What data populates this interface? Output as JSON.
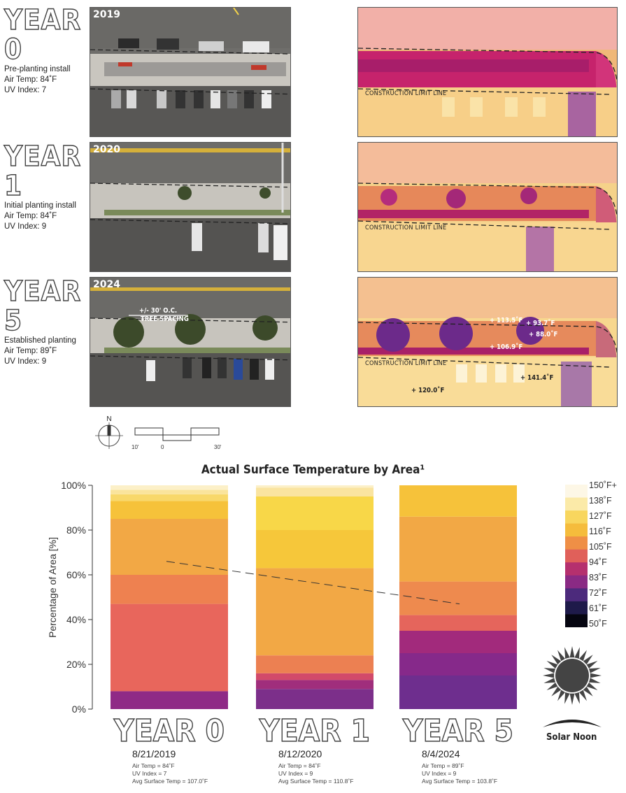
{
  "rows": [
    {
      "year_label": "YEAR 0",
      "photo_year": "2019",
      "caption": "Pre-planting install",
      "air_temp": "Air Temp: 84˚F",
      "uv": "UV Index: 7"
    },
    {
      "year_label": "YEAR 1",
      "photo_year": "2020",
      "caption": "Initial planting install",
      "air_temp": "Air Temp: 84˚F",
      "uv": "UV Index: 9"
    },
    {
      "year_label": "YEAR 5",
      "photo_year": "2024",
      "caption": "Established planting",
      "air_temp": "Air Temp: 89˚F",
      "uv": "UV Index: 9"
    }
  ],
  "thermal": {
    "construction_limit_line": "CONSTRUCTION LIMIT LINE",
    "tree_spacing_1": "+/- 30' O.C.",
    "tree_spacing_2": "TREE SPACING",
    "readings": [
      "+ 113.5˚F",
      "+ 93.7˚F",
      "+ 88.0˚F",
      "+ 106.9˚F",
      "+ 141.4˚F",
      "+ 120.0˚F"
    ]
  },
  "compass": {
    "north": "N"
  },
  "scale_bar": {
    "labels": [
      "10'",
      "0",
      "30'"
    ]
  },
  "chart_data": {
    "type": "bar",
    "stacked": true,
    "title": "Actual Surface Temperature by Area¹",
    "ylabel": "Percentage of Area [%]",
    "ylim": [
      0,
      100
    ],
    "yticks": [
      "0%",
      "20%",
      "40%",
      "60%",
      "80%",
      "100%"
    ],
    "categories": [
      "YEAR 0",
      "YEAR 1",
      "YEAR 5"
    ],
    "dates": [
      "8/21/2019",
      "8/12/2020",
      "8/4/2024"
    ],
    "notes": [
      [
        "Air Temp = 84˚F",
        "UV Index = 7",
        "Avg Surface Temp = 107.0˚F"
      ],
      [
        "Air Temp = 84˚F",
        "UV Index = 9",
        "Avg Surface Temp = 110.8˚F"
      ],
      [
        "Air Temp = 89˚F",
        "UV Index = 9",
        "Avg Surface Temp = 103.8˚F"
      ]
    ],
    "stacks": [
      [
        {
          "from": 0,
          "to": 8,
          "color": "#8f2a86"
        },
        {
          "from": 8,
          "to": 47,
          "color": "#e8665c"
        },
        {
          "from": 47,
          "to": 60,
          "color": "#ee8150"
        },
        {
          "from": 60,
          "to": 85,
          "color": "#f2a845"
        },
        {
          "from": 85,
          "to": 93,
          "color": "#f6c23a"
        },
        {
          "from": 93,
          "to": 96,
          "color": "#f8d86a"
        },
        {
          "from": 96,
          "to": 98,
          "color": "#fae49c"
        },
        {
          "from": 98,
          "to": 100,
          "color": "#fcf0c8"
        }
      ],
      [
        {
          "from": 0,
          "to": 9,
          "color": "#7c2f8a"
        },
        {
          "from": 9,
          "to": 13,
          "color": "#a02e7c"
        },
        {
          "from": 13,
          "to": 16,
          "color": "#d24a6a"
        },
        {
          "from": 16,
          "to": 24,
          "color": "#ec8052"
        },
        {
          "from": 24,
          "to": 63,
          "color": "#f2a845"
        },
        {
          "from": 63,
          "to": 80,
          "color": "#f6c73a"
        },
        {
          "from": 80,
          "to": 95,
          "color": "#f8d748"
        },
        {
          "from": 95,
          "to": 99,
          "color": "#fae4a0"
        },
        {
          "from": 99,
          "to": 100,
          "color": "#fcf0c8"
        }
      ],
      [
        {
          "from": 0,
          "to": 15,
          "color": "#6e2e8e"
        },
        {
          "from": 15,
          "to": 25,
          "color": "#86298a"
        },
        {
          "from": 25,
          "to": 35,
          "color": "#a22a7c"
        },
        {
          "from": 35,
          "to": 42,
          "color": "#e5655c"
        },
        {
          "from": 42,
          "to": 57,
          "color": "#ee8a4e"
        },
        {
          "from": 57,
          "to": 86,
          "color": "#f2a845"
        },
        {
          "from": 86,
          "to": 100,
          "color": "#f6c23a"
        }
      ]
    ],
    "trend_line": {
      "style": "dashed",
      "y_start": 66,
      "y_end": 47
    },
    "legend": {
      "title": "",
      "labels": [
        "150˚F+",
        "138˚F",
        "127˚F",
        "116˚F",
        "105˚F",
        "94˚F",
        "83˚F",
        "72˚F",
        "61˚F",
        "50˚F"
      ],
      "colors": [
        "#fdf7e6",
        "#fbeaa8",
        "#f8d65e",
        "#f5bc3c",
        "#ef8f46",
        "#e0605a",
        "#b5306e",
        "#8a2a84",
        "#4c2a7c",
        "#1e1a4a",
        "#050510"
      ]
    }
  },
  "solar": {
    "label": "Solar Noon"
  }
}
